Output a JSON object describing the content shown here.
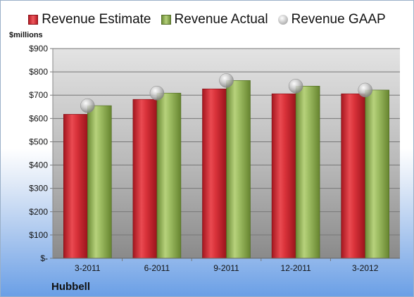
{
  "legend": {
    "estimate": "Revenue Estimate",
    "actual": "Revenue Actual",
    "gaap": "Revenue GAAP"
  },
  "unit_label": "$millions",
  "company": "Hubbell",
  "colors": {
    "estimate": "#c8202a",
    "actual": "#94b45a",
    "gaap": "#bdbdbd"
  },
  "chart_data": {
    "type": "bar",
    "categories": [
      "3-2011",
      "6-2011",
      "9-2011",
      "12-2011",
      "3-2012"
    ],
    "series": [
      {
        "name": "Revenue Estimate",
        "values": [
          618,
          682,
          727,
          706,
          706
        ]
      },
      {
        "name": "Revenue Actual",
        "values": [
          655,
          709,
          763,
          739,
          722
        ]
      },
      {
        "name": "Revenue GAAP",
        "values": [
          655,
          709,
          763,
          739,
          722
        ]
      }
    ],
    "yticks": [
      "$-",
      "$100",
      "$200",
      "$300",
      "$400",
      "$500",
      "$600",
      "$700",
      "$800",
      "$900"
    ],
    "ylabel": "$millions",
    "ylim": [
      0,
      900
    ],
    "grid": true,
    "legend": "top"
  }
}
